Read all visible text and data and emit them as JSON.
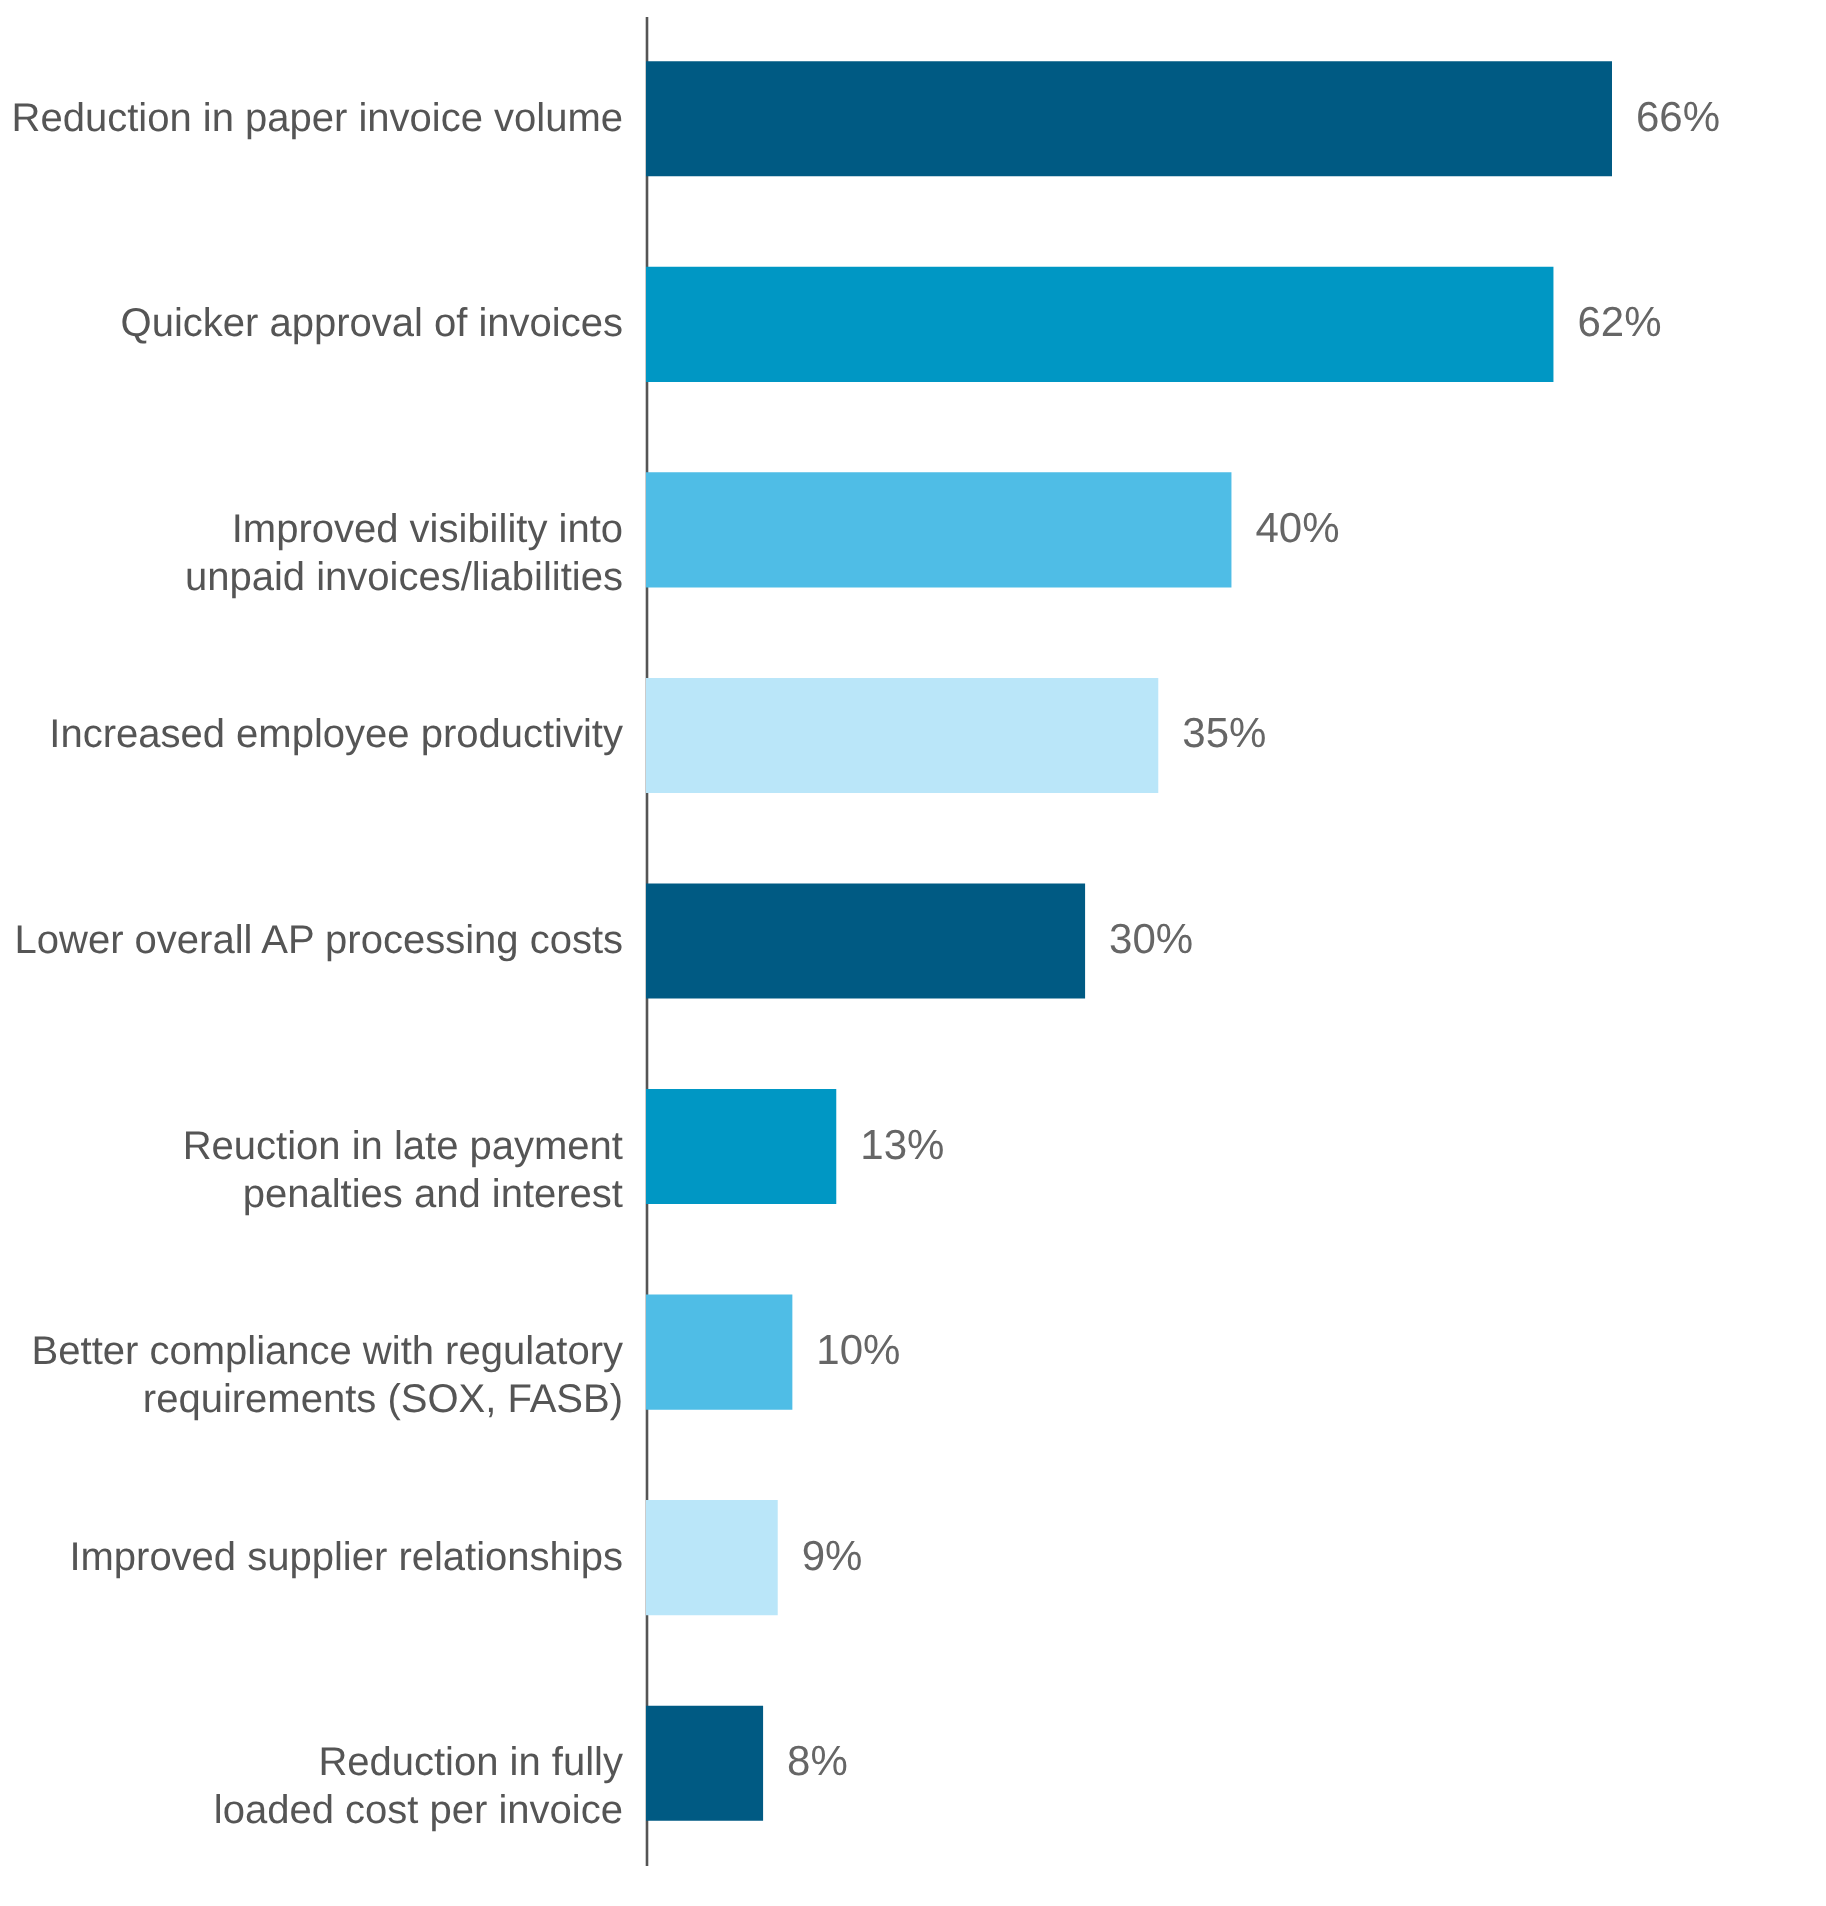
{
  "chart_data": {
    "type": "bar",
    "orientation": "horizontal",
    "categories": [
      "Reduction in paper invoice volume",
      "Quicker approval of invoices",
      "Improved visibility into unpaid invoices/liabilities",
      "Increased employee productivity",
      "Lower overall AP processing costs",
      "Reuction in late payment penalties and interest",
      "Better compliance with regulatory requirements (SOX, FASB)",
      "Improved supplier relationships",
      "Reduction in fully loaded cost per invoice"
    ],
    "values": [
      66,
      62,
      40,
      35,
      30,
      13,
      10,
      9,
      8
    ],
    "value_labels": [
      "66%",
      "62%",
      "40%",
      "35%",
      "30%",
      "13%",
      "10%",
      "9%",
      "8%"
    ],
    "colors": [
      "#005a83",
      "#0097c4",
      "#4fbde6",
      "#bae6f9",
      "#005a83",
      "#0097c4",
      "#4fbde6",
      "#bae6f9",
      "#005a83"
    ],
    "grid": false
  }
}
